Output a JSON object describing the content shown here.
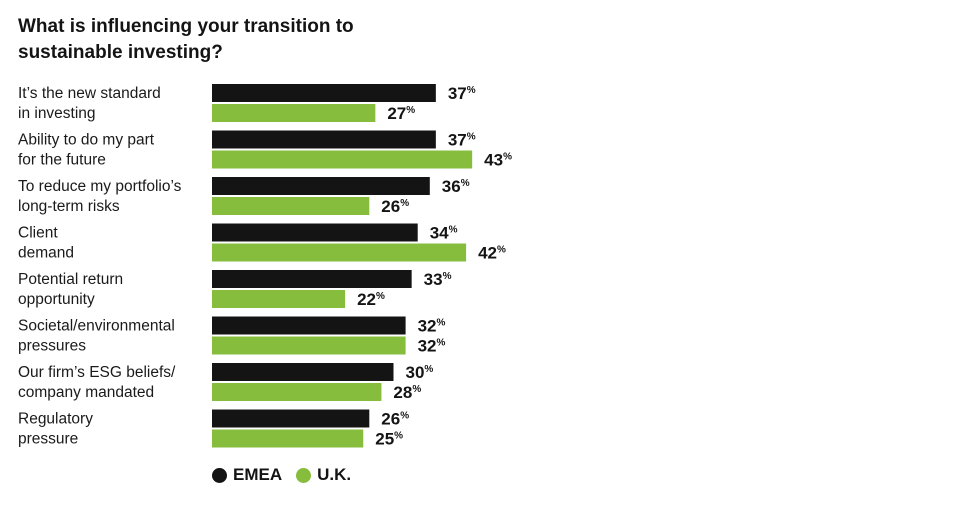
{
  "colors": {
    "emea": "#141414",
    "uk": "#86bd3c"
  },
  "chart_data": {
    "type": "bar",
    "orientation": "horizontal",
    "title": "What is influencing your transition to sustainable investing?",
    "title_lines": [
      "What is influencing your transition to",
      "sustainable investing?"
    ],
    "categories": [
      [
        "It’s the new standard",
        "in investing"
      ],
      [
        "Ability to do my part",
        "for the future"
      ],
      [
        "To reduce my portfolio’s",
        "long-term risks"
      ],
      [
        "Client",
        "demand"
      ],
      [
        "Potential return",
        "opportunity"
      ],
      [
        "Societal/environmental",
        "pressures"
      ],
      [
        "Our firm’s ESG beliefs/",
        "company mandated"
      ],
      [
        "Regulatory",
        "pressure"
      ]
    ],
    "series": [
      {
        "name": "EMEA",
        "color": "#141414",
        "values": [
          37,
          37,
          36,
          34,
          33,
          32,
          30,
          26
        ]
      },
      {
        "name": "U.K.",
        "color": "#86bd3c",
        "values": [
          27,
          43,
          26,
          42,
          22,
          32,
          28,
          25
        ]
      }
    ],
    "value_suffix": "%",
    "xlim": [
      0,
      45
    ],
    "legend": "bottom-left",
    "grid": false
  }
}
